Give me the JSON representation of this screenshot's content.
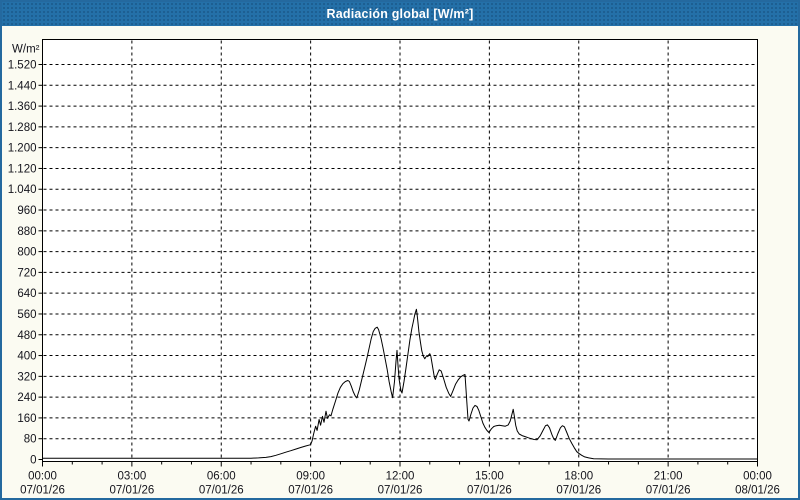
{
  "window": {
    "title": "Radiación global [W/m²]"
  },
  "colors": {
    "titlebar_bg": "#2470a8",
    "titlebar_text": "#ffffff",
    "frame": "#24699f",
    "page_bg": "#fbfbf2",
    "plot_bg": "#ffffff",
    "grid": "#000000",
    "axis": "#000000",
    "line": "#000000",
    "label_text": "#14141c"
  },
  "chart_data": {
    "type": "line",
    "title": "Radiación global [W/m²]",
    "unit_label": "W/m²",
    "ylim": [
      0,
      1520
    ],
    "ytick_step": 80,
    "yticks": [
      {
        "value": 0,
        "label": "0"
      },
      {
        "value": 80,
        "label": "80"
      },
      {
        "value": 160,
        "label": "160"
      },
      {
        "value": 240,
        "label": "240"
      },
      {
        "value": 320,
        "label": "320"
      },
      {
        "value": 400,
        "label": "400"
      },
      {
        "value": 480,
        "label": "480"
      },
      {
        "value": 560,
        "label": "560"
      },
      {
        "value": 640,
        "label": "640"
      },
      {
        "value": 720,
        "label": "720"
      },
      {
        "value": 800,
        "label": "800"
      },
      {
        "value": 880,
        "label": "880"
      },
      {
        "value": 960,
        "label": "960"
      },
      {
        "value": 1040,
        "label": "1.040"
      },
      {
        "value": 1120,
        "label": "1.120"
      },
      {
        "value": 1200,
        "label": "1.200"
      },
      {
        "value": 1280,
        "label": "1.280"
      },
      {
        "value": 1360,
        "label": "1.360"
      },
      {
        "value": 1440,
        "label": "1.440"
      },
      {
        "value": 1520,
        "label": "1.520"
      }
    ],
    "xlim_minutes": [
      0,
      1440
    ],
    "xticks": [
      {
        "minutes": 0,
        "time": "00:00",
        "date": "07/01/26"
      },
      {
        "minutes": 180,
        "time": "03:00",
        "date": "07/01/26"
      },
      {
        "minutes": 360,
        "time": "06:00",
        "date": "07/01/26"
      },
      {
        "minutes": 540,
        "time": "09:00",
        "date": "07/01/26"
      },
      {
        "minutes": 720,
        "time": "12:00",
        "date": "07/01/26"
      },
      {
        "minutes": 900,
        "time": "15:00",
        "date": "07/01/26"
      },
      {
        "minutes": 1080,
        "time": "18:00",
        "date": "07/01/26"
      },
      {
        "minutes": 1260,
        "time": "21:00",
        "date": "07/01/26"
      },
      {
        "minutes": 1440,
        "time": "00:00",
        "date": "08/01/26"
      }
    ],
    "minor_xtick_minutes": 60,
    "grid": "dashed",
    "legend": "none",
    "series": [
      {
        "name": "Radiación global",
        "color": "#000000",
        "points_minutes_value": [
          [
            0,
            5
          ],
          [
            120,
            5
          ],
          [
            240,
            5
          ],
          [
            330,
            5
          ],
          [
            390,
            5
          ],
          [
            420,
            5
          ],
          [
            435,
            6
          ],
          [
            450,
            8
          ],
          [
            460,
            11
          ],
          [
            470,
            16
          ],
          [
            480,
            22
          ],
          [
            490,
            28
          ],
          [
            500,
            34
          ],
          [
            510,
            40
          ],
          [
            520,
            46
          ],
          [
            530,
            52
          ],
          [
            540,
            57
          ],
          [
            543,
            72
          ],
          [
            546,
            98
          ],
          [
            550,
            128
          ],
          [
            553,
            112
          ],
          [
            557,
            154
          ],
          [
            560,
            132
          ],
          [
            564,
            166
          ],
          [
            567,
            143
          ],
          [
            571,
            186
          ],
          [
            574,
            158
          ],
          [
            578,
            172
          ],
          [
            581,
            168
          ],
          [
            585,
            195
          ],
          [
            590,
            225
          ],
          [
            595,
            255
          ],
          [
            600,
            278
          ],
          [
            605,
            292
          ],
          [
            610,
            300
          ],
          [
            615,
            304
          ],
          [
            618,
            300
          ],
          [
            622,
            282
          ],
          [
            626,
            260
          ],
          [
            630,
            244
          ],
          [
            633,
            237
          ],
          [
            638,
            268
          ],
          [
            642,
            300
          ],
          [
            646,
            332
          ],
          [
            650,
            362
          ],
          [
            654,
            395
          ],
          [
            658,
            430
          ],
          [
            662,
            465
          ],
          [
            666,
            492
          ],
          [
            670,
            505
          ],
          [
            674,
            509
          ],
          [
            677,
            500
          ],
          [
            682,
            465
          ],
          [
            686,
            428
          ],
          [
            690,
            388
          ],
          [
            694,
            348
          ],
          [
            698,
            300
          ],
          [
            702,
            262
          ],
          [
            705,
            238
          ],
          [
            709,
            300
          ],
          [
            712,
            378
          ],
          [
            714,
            420
          ],
          [
            716,
            362
          ],
          [
            718,
            312
          ],
          [
            720,
            286
          ],
          [
            722,
            265
          ],
          [
            724,
            256
          ],
          [
            728,
            300
          ],
          [
            732,
            352
          ],
          [
            736,
            405
          ],
          [
            740,
            460
          ],
          [
            744,
            505
          ],
          [
            747,
            532
          ],
          [
            750,
            560
          ],
          [
            752,
            572
          ],
          [
            753,
            578
          ],
          [
            754,
            565
          ],
          [
            756,
            530
          ],
          [
            758,
            492
          ],
          [
            761,
            452
          ],
          [
            764,
            418
          ],
          [
            767,
            398
          ],
          [
            770,
            388
          ],
          [
            772,
            394
          ],
          [
            774,
            400
          ],
          [
            776,
            396
          ],
          [
            778,
            403
          ],
          [
            780,
            407
          ],
          [
            782,
            398
          ],
          [
            786,
            352
          ],
          [
            789,
            318
          ],
          [
            791,
            308
          ],
          [
            795,
            328
          ],
          [
            799,
            345
          ],
          [
            803,
            340
          ],
          [
            808,
            310
          ],
          [
            813,
            278
          ],
          [
            818,
            255
          ],
          [
            822,
            243
          ],
          [
            827,
            266
          ],
          [
            832,
            290
          ],
          [
            837,
            306
          ],
          [
            842,
            318
          ],
          [
            847,
            324
          ],
          [
            851,
            327
          ],
          [
            854,
            240
          ],
          [
            857,
            155
          ],
          [
            859,
            148
          ],
          [
            863,
            175
          ],
          [
            867,
            198
          ],
          [
            871,
            208
          ],
          [
            875,
            204
          ],
          [
            879,
            188
          ],
          [
            883,
            164
          ],
          [
            887,
            140
          ],
          [
            891,
            124
          ],
          [
            895,
            112
          ],
          [
            899,
            104
          ],
          [
            904,
            118
          ],
          [
            909,
            127
          ],
          [
            914,
            130
          ],
          [
            920,
            132
          ],
          [
            926,
            130
          ],
          [
            932,
            128
          ],
          [
            938,
            133
          ],
          [
            942,
            148
          ],
          [
            946,
            178
          ],
          [
            948,
            193
          ],
          [
            950,
            170
          ],
          [
            953,
            132
          ],
          [
            956,
            110
          ],
          [
            960,
            98
          ],
          [
            966,
            92
          ],
          [
            972,
            88
          ],
          [
            978,
            84
          ],
          [
            984,
            80
          ],
          [
            990,
            77
          ],
          [
            996,
            76
          ],
          [
            1002,
            90
          ],
          [
            1008,
            112
          ],
          [
            1013,
            130
          ],
          [
            1017,
            133
          ],
          [
            1021,
            122
          ],
          [
            1026,
            96
          ],
          [
            1030,
            78
          ],
          [
            1033,
            74
          ],
          [
            1038,
            100
          ],
          [
            1043,
            122
          ],
          [
            1047,
            130
          ],
          [
            1051,
            126
          ],
          [
            1056,
            104
          ],
          [
            1061,
            80
          ],
          [
            1066,
            62
          ],
          [
            1071,
            45
          ],
          [
            1076,
            30
          ],
          [
            1080,
            24
          ],
          [
            1086,
            16
          ],
          [
            1092,
            10
          ],
          [
            1100,
            6
          ],
          [
            1110,
            3
          ],
          [
            1140,
            2
          ],
          [
            1200,
            2
          ],
          [
            1320,
            2
          ],
          [
            1440,
            2
          ]
        ]
      }
    ]
  }
}
